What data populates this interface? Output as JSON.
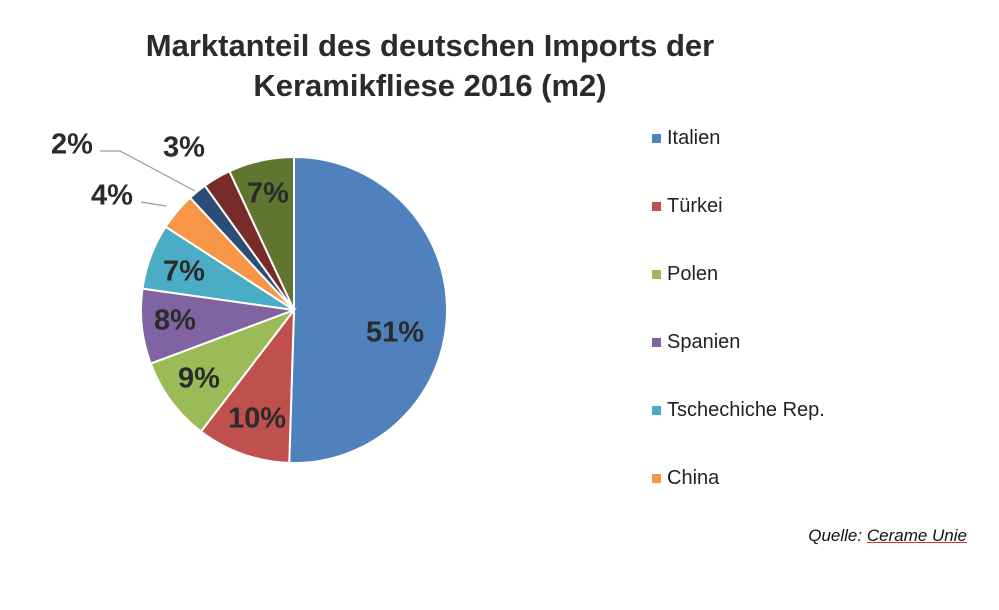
{
  "title_line1": "Marktanteil des deutschen Imports der",
  "title_line2": "Keramikfliese 2016 (m2)",
  "source_prefix": "Quelle: ",
  "source_name": "Cerame Unie",
  "chart_data": {
    "type": "pie",
    "title": "Marktanteil des deutschen Imports der Keramikfliese 2016 (m2)",
    "start": "12 o'clock, clockwise",
    "slices": [
      {
        "label": "Italien",
        "value": 51,
        "display": "51%",
        "color": "#4f81bd"
      },
      {
        "label": "Türkei",
        "value": 10,
        "display": "10%",
        "color": "#c0504d"
      },
      {
        "label": "Polen",
        "value": 9,
        "display": "9%",
        "color": "#9bbb59"
      },
      {
        "label": "Spanien",
        "value": 8,
        "display": "8%",
        "color": "#8064a2"
      },
      {
        "label": "Tschechiche Rep.",
        "value": 7,
        "display": "7%",
        "color": "#4bacc6"
      },
      {
        "label": "China",
        "value": 4,
        "display": "4%",
        "color": "#f79646"
      },
      {
        "label": "",
        "value": 2,
        "display": "2%",
        "color": "#2c4d75"
      },
      {
        "label": "",
        "value": 3,
        "display": "3%",
        "color": "#772c2a"
      },
      {
        "label": "",
        "value": 7,
        "display": "7%",
        "color": "#5f7530"
      }
    ],
    "legend": {
      "placement": "right",
      "items": [
        "Italien",
        "Türkei",
        "Polen",
        "Spanien",
        "Tschechiche Rep.",
        "China"
      ]
    }
  }
}
